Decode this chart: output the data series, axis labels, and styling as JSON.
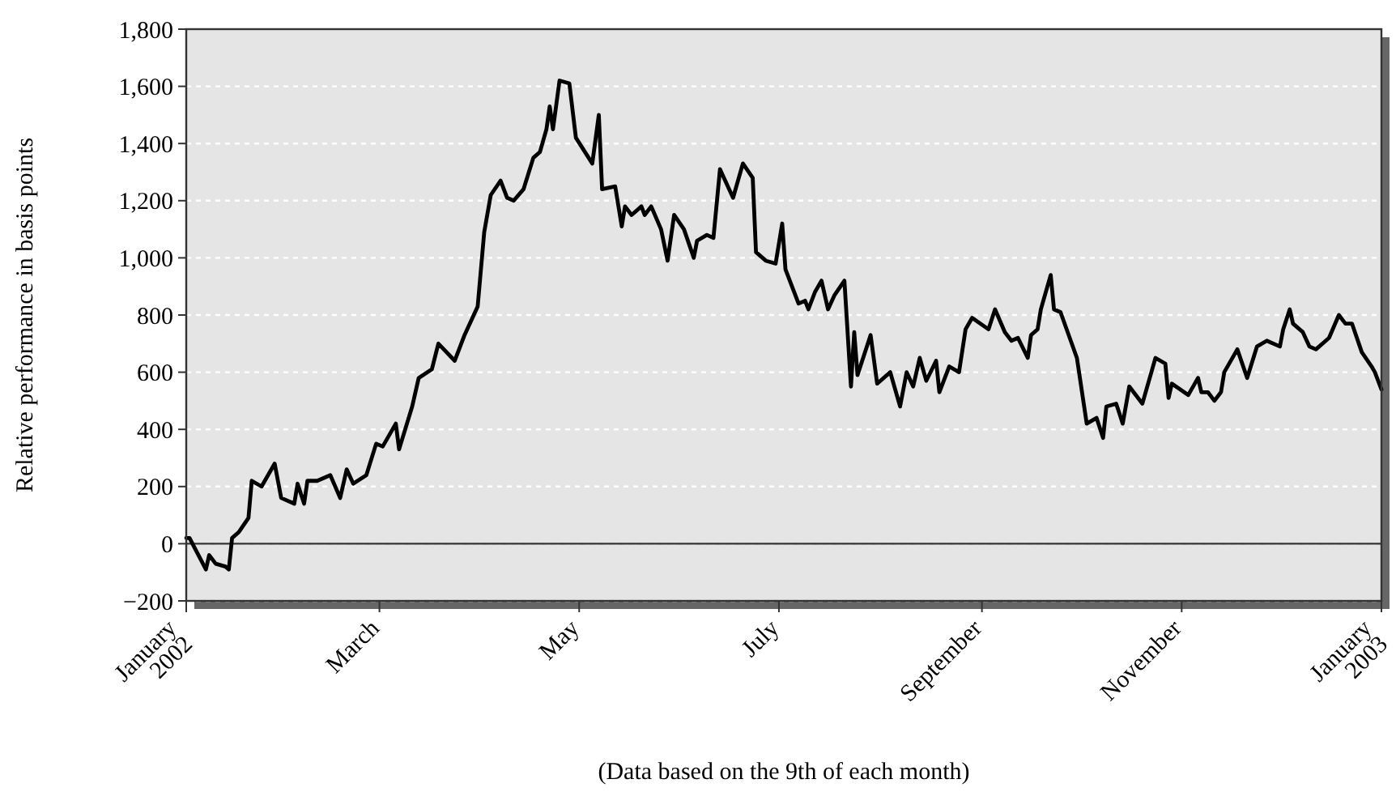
{
  "chart_data": {
    "type": "line",
    "ylabel": "Relative performance in basis points",
    "xlabel": "(Data based on the 9th of each month)",
    "x": [
      "2002-01-09",
      "2002-01-10",
      "2002-01-15",
      "2002-01-16",
      "2002-01-18",
      "2002-01-21",
      "2002-01-22",
      "2002-01-23",
      "2002-01-25",
      "2002-01-28",
      "2002-01-29",
      "2002-02-01",
      "2002-02-05",
      "2002-02-07",
      "2002-02-11",
      "2002-02-12",
      "2002-02-14",
      "2002-02-15",
      "2002-02-18",
      "2002-02-22",
      "2002-02-25",
      "2002-02-27",
      "2002-03-01",
      "2002-03-05",
      "2002-03-08",
      "2002-03-10",
      "2002-03-14",
      "2002-03-15",
      "2002-03-19",
      "2002-03-21",
      "2002-03-25",
      "2002-03-27",
      "2002-04-01",
      "2002-04-04",
      "2002-04-08",
      "2002-04-10",
      "2002-04-12",
      "2002-04-15",
      "2002-04-17",
      "2002-04-19",
      "2002-04-22",
      "2002-04-25",
      "2002-04-27",
      "2002-04-29",
      "2002-04-30",
      "2002-05-01",
      "2002-05-03",
      "2002-05-06",
      "2002-05-08",
      "2002-05-13",
      "2002-05-15",
      "2002-05-16",
      "2002-05-20",
      "2002-05-22",
      "2002-05-23",
      "2002-05-25",
      "2002-05-28",
      "2002-05-29",
      "2002-05-31",
      "2002-06-03",
      "2002-06-05",
      "2002-06-07",
      "2002-06-10",
      "2002-06-13",
      "2002-06-14",
      "2002-06-17",
      "2002-06-19",
      "2002-06-21",
      "2002-06-25",
      "2002-06-28",
      "2002-07-01",
      "2002-07-02",
      "2002-07-05",
      "2002-07-08",
      "2002-07-10",
      "2002-07-11",
      "2002-07-15",
      "2002-07-17",
      "2002-07-18",
      "2002-07-20",
      "2002-07-22",
      "2002-07-24",
      "2002-07-26",
      "2002-07-29",
      "2002-07-31",
      "2002-08-01",
      "2002-08-02",
      "2002-08-06",
      "2002-08-08",
      "2002-08-12",
      "2002-08-15",
      "2002-08-17",
      "2002-08-19",
      "2002-08-21",
      "2002-08-23",
      "2002-08-26",
      "2002-08-27",
      "2002-08-30",
      "2002-09-02",
      "2002-09-04",
      "2002-09-06",
      "2002-09-11",
      "2002-09-13",
      "2002-09-16",
      "2002-09-18",
      "2002-09-20",
      "2002-09-23",
      "2002-09-24",
      "2002-09-26",
      "2002-09-27",
      "2002-09-30",
      "2002-10-01",
      "2002-10-03",
      "2002-10-08",
      "2002-10-11",
      "2002-10-14",
      "2002-10-16",
      "2002-10-17",
      "2002-10-20",
      "2002-10-22",
      "2002-10-24",
      "2002-10-28",
      "2002-11-01",
      "2002-11-04",
      "2002-11-05",
      "2002-11-06",
      "2002-11-11",
      "2002-11-14",
      "2002-11-15",
      "2002-11-17",
      "2002-11-19",
      "2002-11-21",
      "2002-11-22",
      "2002-11-26",
      "2002-11-29",
      "2002-12-02",
      "2002-12-05",
      "2002-12-09",
      "2002-12-10",
      "2002-12-12",
      "2002-12-13",
      "2002-12-16",
      "2002-12-18",
      "2002-12-20",
      "2002-12-24",
      "2002-12-27",
      "2002-12-29",
      "2002-12-31",
      "2003-01-03",
      "2003-01-06",
      "2003-01-07",
      "2003-01-09"
    ],
    "series": [
      {
        "color": "#000000",
        "values": [
          20,
          20,
          -90,
          -40,
          -70,
          -80,
          -90,
          20,
          40,
          90,
          220,
          200,
          280,
          160,
          140,
          210,
          140,
          220,
          220,
          240,
          160,
          260,
          210,
          240,
          350,
          340,
          420,
          330,
          480,
          580,
          610,
          700,
          640,
          730,
          830,
          1090,
          1220,
          1270,
          1210,
          1200,
          1240,
          1350,
          1370,
          1450,
          1530,
          1450,
          1620,
          1610,
          1420,
          1330,
          1500,
          1240,
          1250,
          1110,
          1180,
          1150,
          1180,
          1150,
          1180,
          1100,
          990,
          1150,
          1100,
          1000,
          1060,
          1080,
          1070,
          1310,
          1210,
          1330,
          1280,
          1020,
          990,
          980,
          1120,
          960,
          840,
          850,
          820,
          880,
          920,
          820,
          870,
          920,
          550,
          740,
          590,
          730,
          560,
          600,
          480,
          600,
          550,
          650,
          570,
          640,
          530,
          620,
          600,
          750,
          790,
          750,
          820,
          740,
          710,
          720,
          650,
          730,
          750,
          820,
          940,
          820,
          810,
          650,
          420,
          440,
          370,
          480,
          490,
          420,
          550,
          490,
          650,
          630,
          510,
          560,
          520,
          580,
          530,
          530,
          500,
          530,
          600,
          680,
          580,
          690,
          710,
          690,
          750,
          820,
          770,
          740,
          690,
          680,
          720,
          800,
          770,
          770,
          670,
          620,
          600,
          540
        ]
      }
    ],
    "xlim": [
      "2002-01-09",
      "2003-01-09"
    ],
    "xticks": [
      {
        "value": "2002-01-09",
        "label": "January 2002"
      },
      {
        "value": "2002-03-09",
        "label": "March"
      },
      {
        "value": "2002-05-09",
        "label": "May"
      },
      {
        "value": "2002-07-09",
        "label": "July"
      },
      {
        "value": "2002-09-09",
        "label": "September"
      },
      {
        "value": "2002-11-09",
        "label": "November"
      },
      {
        "value": "2003-01-09",
        "label": "January 2003"
      }
    ],
    "ylim": [
      -200,
      1800
    ],
    "yticks": [
      {
        "value": -200,
        "label": "−200"
      },
      0,
      200,
      400,
      600,
      800,
      {
        "value": 1000,
        "label": "1,000"
      },
      {
        "value": 1200,
        "label": "1,200"
      },
      {
        "value": 1400,
        "label": "1,400"
      },
      {
        "value": 1600,
        "label": "1,600"
      },
      {
        "value": 1800,
        "label": "1,800"
      }
    ],
    "grid": "y",
    "line_style": "solid",
    "marker": "none",
    "ref_lines": [
      {
        "axis": "y",
        "value": 0,
        "color": "#333333"
      }
    ]
  }
}
